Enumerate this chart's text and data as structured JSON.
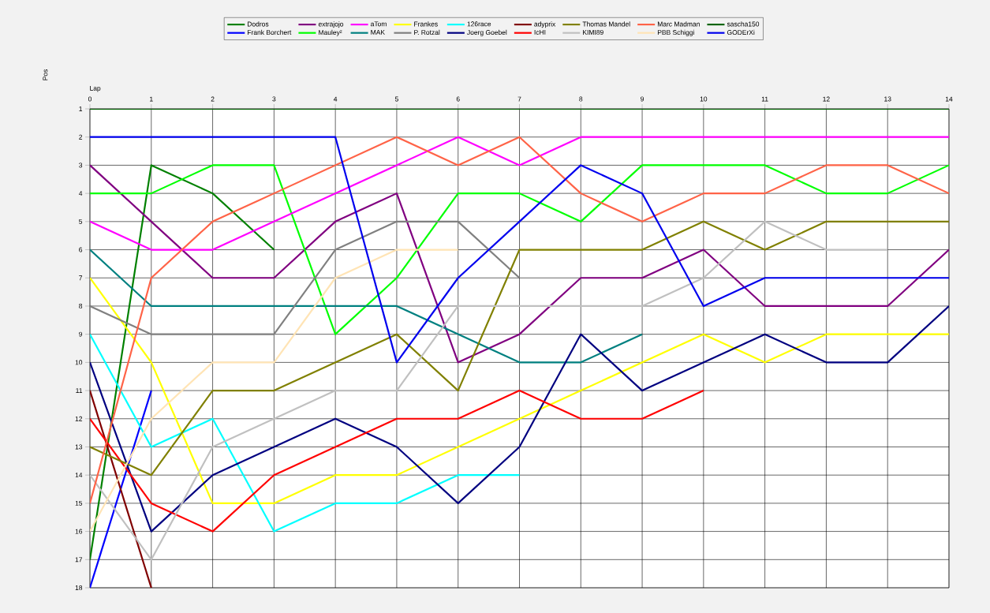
{
  "chart_data": {
    "type": "line",
    "xlabel": "Lap",
    "ylabel": "Pos",
    "x": [
      0,
      1,
      2,
      3,
      4,
      5,
      6,
      7,
      8,
      9,
      10,
      11,
      12,
      13,
      14
    ],
    "xlim": [
      0,
      14
    ],
    "xticks": [
      0,
      1,
      2,
      3,
      4,
      5,
      6,
      7,
      8,
      9,
      10,
      11,
      12,
      13,
      14
    ],
    "ylim": [
      18,
      1
    ],
    "yticks": [
      1,
      2,
      3,
      4,
      5,
      6,
      7,
      8,
      9,
      10,
      11,
      12,
      13,
      14,
      15,
      16,
      17,
      18
    ],
    "grid": true,
    "legend": "top",
    "series": [
      {
        "name": "Dodros",
        "color": "#008000",
        "values": [
          17,
          3,
          4,
          6,
          null,
          null,
          null,
          null,
          null,
          null,
          null,
          null,
          null,
          null,
          null
        ]
      },
      {
        "name": "Frank Borchert",
        "color": "#0000ff",
        "values": [
          18,
          11,
          null,
          null,
          null,
          null,
          null,
          null,
          null,
          null,
          null,
          null,
          null,
          null,
          null
        ]
      },
      {
        "name": "extrajojo",
        "color": "#800080",
        "values": [
          3,
          5,
          7,
          7,
          5,
          4,
          10,
          9,
          7,
          7,
          6,
          8,
          8,
          8,
          6
        ]
      },
      {
        "name": "Mauley²",
        "color": "#00ff00",
        "values": [
          4,
          4,
          3,
          3,
          9,
          7,
          4,
          4,
          5,
          3,
          3,
          3,
          4,
          4,
          3
        ]
      },
      {
        "name": "aTom",
        "color": "#ff00ff",
        "values": [
          5,
          6,
          6,
          5,
          4,
          3,
          2,
          3,
          2,
          2,
          2,
          2,
          2,
          2,
          2
        ]
      },
      {
        "name": "MAK",
        "color": "#008080",
        "values": [
          6,
          8,
          8,
          8,
          8,
          8,
          9,
          10,
          10,
          9,
          null,
          null,
          null,
          null,
          null
        ]
      },
      {
        "name": "Frankes",
        "color": "#ffff00",
        "values": [
          7,
          10,
          15,
          15,
          14,
          14,
          13,
          12,
          11,
          10,
          9,
          10,
          9,
          9,
          9
        ]
      },
      {
        "name": "P. Rotzal",
        "color": "#808080",
        "values": [
          8,
          9,
          9,
          9,
          6,
          5,
          5,
          7,
          null,
          null,
          null,
          null,
          null,
          null,
          null
        ]
      },
      {
        "name": "126race",
        "color": "#00ffff",
        "values": [
          9,
          13,
          12,
          16,
          15,
          15,
          14,
          14,
          null,
          null,
          null,
          null,
          null,
          null,
          null
        ]
      },
      {
        "name": "Joerg Goebel",
        "color": "#000080",
        "values": [
          10,
          16,
          14,
          13,
          12,
          13,
          15,
          13,
          9,
          11,
          10,
          9,
          10,
          10,
          8
        ]
      },
      {
        "name": "adyprix",
        "color": "#800000",
        "values": [
          11,
          18,
          null,
          null,
          null,
          null,
          null,
          null,
          null,
          null,
          null,
          null,
          null,
          null,
          null
        ]
      },
      {
        "name": "IcHI",
        "color": "#ff0000",
        "values": [
          12,
          15,
          16,
          14,
          13,
          12,
          12,
          11,
          12,
          12,
          11,
          null,
          null,
          null,
          null
        ]
      },
      {
        "name": "Thomas Mandel",
        "color": "#808000",
        "values": [
          13,
          14,
          11,
          11,
          10,
          9,
          11,
          6,
          6,
          6,
          5,
          6,
          5,
          5,
          5
        ]
      },
      {
        "name": "KIMI89",
        "color": "#c0c0c0",
        "values": [
          14,
          17,
          13,
          12,
          11,
          11,
          8,
          8,
          8,
          8,
          7,
          5,
          6,
          6,
          null
        ]
      },
      {
        "name": "Marc Madman",
        "color": "#ff6347",
        "values": [
          15,
          7,
          5,
          4,
          3,
          2,
          3,
          2,
          4,
          5,
          4,
          4,
          3,
          3,
          4
        ]
      },
      {
        "name": "PBB Schiggi",
        "color": "#ffe4b5",
        "values": [
          16,
          12,
          10,
          10,
          7,
          6,
          6,
          null,
          null,
          null,
          null,
          null,
          null,
          null,
          null
        ]
      },
      {
        "name": "sascha150",
        "color": "#006400",
        "values": [
          1,
          1,
          1,
          1,
          1,
          1,
          1,
          1,
          1,
          1,
          1,
          1,
          1,
          1,
          1
        ]
      },
      {
        "name": "GODErXi",
        "color": "#0000ee",
        "values": [
          2,
          2,
          2,
          2,
          2,
          10,
          7,
          5,
          3,
          4,
          8,
          7,
          7,
          7,
          7
        ]
      }
    ]
  }
}
